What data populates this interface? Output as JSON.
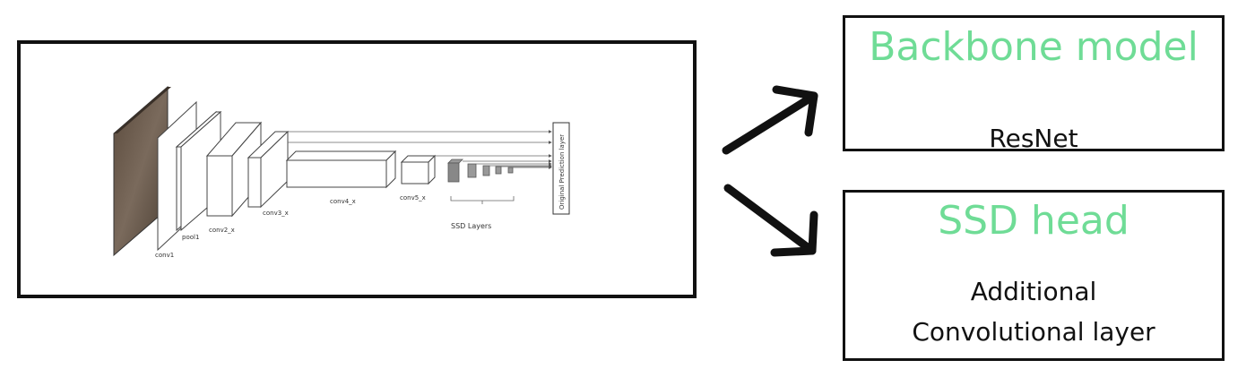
{
  "network": {
    "layer_labels": [
      "conv1",
      "pool1",
      "conv2_x",
      "conv3_x",
      "conv4_x",
      "conv5_x"
    ],
    "ssd_layers_label": "SSD Layers",
    "prediction_layer_label": "Original Prediction layer"
  },
  "backbone": {
    "title": "Backbone model",
    "body": "ResNet"
  },
  "ssd_head": {
    "title": "SSD head",
    "body_line1": "Additional",
    "body_line2": "Convolutional layer"
  },
  "colors": {
    "accent_green": "#6fdc96",
    "border": "#111111"
  }
}
